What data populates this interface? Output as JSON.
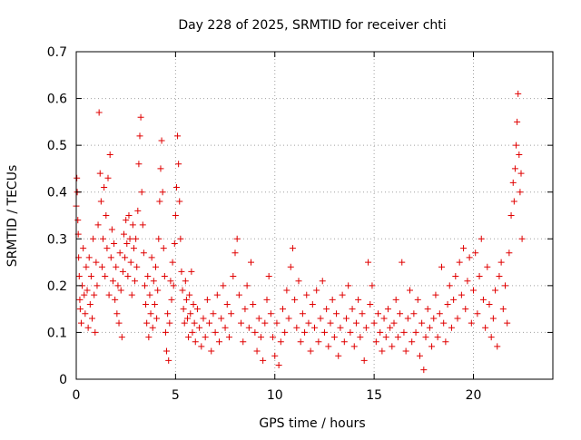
{
  "chart_data": {
    "type": "scatter",
    "title": "Day 228 of 2025, SRMTID for receiver chti",
    "xlabel": "GPS time / hours",
    "ylabel": "SRMTID / TECUs",
    "xlim": [
      0,
      24
    ],
    "ylim": [
      0,
      0.7
    ],
    "xticks": [
      0,
      5,
      10,
      15,
      20
    ],
    "xtick_labels": [
      "0",
      "5",
      "10",
      "15",
      "20"
    ],
    "yticks": [
      0,
      0.1,
      0.2,
      0.3,
      0.4,
      0.5,
      0.6,
      0.7
    ],
    "ytick_labels": [
      "0",
      "0.1",
      "0.2",
      "0.3",
      "0.4",
      "0.5",
      "0.6",
      "0.7"
    ],
    "grid": true,
    "marker": "+",
    "color": "#e00000",
    "series": [
      {
        "name": "SRMTID",
        "points": [
          [
            0.0,
            0.37
          ],
          [
            0.03,
            0.43
          ],
          [
            0.05,
            0.4
          ],
          [
            0.08,
            0.34
          ],
          [
            0.1,
            0.31
          ],
          [
            0.12,
            0.26
          ],
          [
            0.15,
            0.22
          ],
          [
            0.18,
            0.17
          ],
          [
            0.2,
            0.15
          ],
          [
            0.25,
            0.12
          ],
          [
            0.3,
            0.2
          ],
          [
            0.35,
            0.28
          ],
          [
            0.4,
            0.18
          ],
          [
            0.45,
            0.14
          ],
          [
            0.5,
            0.24
          ],
          [
            0.55,
            0.19
          ],
          [
            0.6,
            0.11
          ],
          [
            0.65,
            0.26
          ],
          [
            0.7,
            0.16
          ],
          [
            0.75,
            0.22
          ],
          [
            0.8,
            0.13
          ],
          [
            0.85,
            0.3
          ],
          [
            0.9,
            0.18
          ],
          [
            0.95,
            0.1
          ],
          [
            1.0,
            0.25
          ],
          [
            1.05,
            0.2
          ],
          [
            1.1,
            0.33
          ],
          [
            1.15,
            0.57
          ],
          [
            1.2,
            0.44
          ],
          [
            1.25,
            0.38
          ],
          [
            1.3,
            0.24
          ],
          [
            1.35,
            0.3
          ],
          [
            1.4,
            0.41
          ],
          [
            1.45,
            0.22
          ],
          [
            1.5,
            0.35
          ],
          [
            1.55,
            0.28
          ],
          [
            1.6,
            0.43
          ],
          [
            1.65,
            0.18
          ],
          [
            1.7,
            0.48
          ],
          [
            1.75,
            0.26
          ],
          [
            1.8,
            0.32
          ],
          [
            1.85,
            0.21
          ],
          [
            1.9,
            0.29
          ],
          [
            1.95,
            0.17
          ],
          [
            2.0,
            0.24
          ],
          [
            2.05,
            0.14
          ],
          [
            2.1,
            0.2
          ],
          [
            2.15,
            0.12
          ],
          [
            2.2,
            0.27
          ],
          [
            2.25,
            0.19
          ],
          [
            2.3,
            0.09
          ],
          [
            2.35,
            0.23
          ],
          [
            2.4,
            0.31
          ],
          [
            2.45,
            0.26
          ],
          [
            2.5,
            0.34
          ],
          [
            2.55,
            0.29
          ],
          [
            2.6,
            0.22
          ],
          [
            2.65,
            0.35
          ],
          [
            2.7,
            0.3
          ],
          [
            2.75,
            0.25
          ],
          [
            2.8,
            0.18
          ],
          [
            2.85,
            0.33
          ],
          [
            2.9,
            0.28
          ],
          [
            2.95,
            0.21
          ],
          [
            3.0,
            0.3
          ],
          [
            3.05,
            0.24
          ],
          [
            3.1,
            0.36
          ],
          [
            3.15,
            0.46
          ],
          [
            3.2,
            0.52
          ],
          [
            3.25,
            0.56
          ],
          [
            3.3,
            0.4
          ],
          [
            3.35,
            0.33
          ],
          [
            3.4,
            0.27
          ],
          [
            3.45,
            0.2
          ],
          [
            3.5,
            0.16
          ],
          [
            3.55,
            0.12
          ],
          [
            3.6,
            0.22
          ],
          [
            3.65,
            0.09
          ],
          [
            3.7,
            0.18
          ],
          [
            3.75,
            0.14
          ],
          [
            3.8,
            0.26
          ],
          [
            3.85,
            0.11
          ],
          [
            3.9,
            0.21
          ],
          [
            3.95,
            0.16
          ],
          [
            4.0,
            0.24
          ],
          [
            4.05,
            0.13
          ],
          [
            4.1,
            0.19
          ],
          [
            4.15,
            0.3
          ],
          [
            4.2,
            0.38
          ],
          [
            4.25,
            0.45
          ],
          [
            4.3,
            0.51
          ],
          [
            4.35,
            0.4
          ],
          [
            4.4,
            0.28
          ],
          [
            4.45,
            0.22
          ],
          [
            4.5,
            0.1
          ],
          [
            4.55,
            0.06
          ],
          [
            4.6,
            0.14
          ],
          [
            4.65,
            0.04
          ],
          [
            4.7,
            0.12
          ],
          [
            4.75,
            0.21
          ],
          [
            4.8,
            0.17
          ],
          [
            4.85,
            0.25
          ],
          [
            4.9,
            0.2
          ],
          [
            4.95,
            0.29
          ],
          [
            5.0,
            0.35
          ],
          [
            5.05,
            0.41
          ],
          [
            5.1,
            0.52
          ],
          [
            5.15,
            0.46
          ],
          [
            5.2,
            0.38
          ],
          [
            5.25,
            0.3
          ],
          [
            5.3,
            0.23
          ],
          [
            5.35,
            0.19
          ],
          [
            5.4,
            0.15
          ],
          [
            5.45,
            0.12
          ],
          [
            5.5,
            0.21
          ],
          [
            5.55,
            0.17
          ],
          [
            5.6,
            0.13
          ],
          [
            5.65,
            0.09
          ],
          [
            5.7,
            0.18
          ],
          [
            5.75,
            0.14
          ],
          [
            5.8,
            0.23
          ],
          [
            5.85,
            0.1
          ],
          [
            5.9,
            0.16
          ],
          [
            5.95,
            0.12
          ],
          [
            6.0,
            0.08
          ],
          [
            6.1,
            0.15
          ],
          [
            6.2,
            0.11
          ],
          [
            6.3,
            0.07
          ],
          [
            6.4,
            0.13
          ],
          [
            6.5,
            0.09
          ],
          [
            6.6,
            0.17
          ],
          [
            6.7,
            0.12
          ],
          [
            6.8,
            0.06
          ],
          [
            6.9,
            0.14
          ],
          [
            7.0,
            0.1
          ],
          [
            7.1,
            0.18
          ],
          [
            7.2,
            0.08
          ],
          [
            7.3,
            0.13
          ],
          [
            7.4,
            0.2
          ],
          [
            7.5,
            0.11
          ],
          [
            7.6,
            0.16
          ],
          [
            7.7,
            0.09
          ],
          [
            7.8,
            0.14
          ],
          [
            7.9,
            0.22
          ],
          [
            8.0,
            0.27
          ],
          [
            8.1,
            0.3
          ],
          [
            8.2,
            0.18
          ],
          [
            8.3,
            0.12
          ],
          [
            8.4,
            0.08
          ],
          [
            8.5,
            0.15
          ],
          [
            8.6,
            0.2
          ],
          [
            8.7,
            0.11
          ],
          [
            8.8,
            0.25
          ],
          [
            8.9,
            0.16
          ],
          [
            9.0,
            0.1
          ],
          [
            9.1,
            0.06
          ],
          [
            9.2,
            0.13
          ],
          [
            9.3,
            0.09
          ],
          [
            9.4,
            0.04
          ],
          [
            9.5,
            0.12
          ],
          [
            9.6,
            0.17
          ],
          [
            9.7,
            0.22
          ],
          [
            9.8,
            0.14
          ],
          [
            9.9,
            0.09
          ],
          [
            10.0,
            0.05
          ],
          [
            10.1,
            0.12
          ],
          [
            10.2,
            0.03
          ],
          [
            10.3,
            0.08
          ],
          [
            10.4,
            0.15
          ],
          [
            10.5,
            0.1
          ],
          [
            10.6,
            0.19
          ],
          [
            10.7,
            0.13
          ],
          [
            10.8,
            0.24
          ],
          [
            10.9,
            0.28
          ],
          [
            11.0,
            0.17
          ],
          [
            11.1,
            0.11
          ],
          [
            11.2,
            0.21
          ],
          [
            11.3,
            0.08
          ],
          [
            11.4,
            0.14
          ],
          [
            11.5,
            0.1
          ],
          [
            11.6,
            0.18
          ],
          [
            11.7,
            0.12
          ],
          [
            11.8,
            0.06
          ],
          [
            11.9,
            0.16
          ],
          [
            12.0,
            0.11
          ],
          [
            12.1,
            0.19
          ],
          [
            12.2,
            0.08
          ],
          [
            12.3,
            0.13
          ],
          [
            12.4,
            0.21
          ],
          [
            12.5,
            0.1
          ],
          [
            12.6,
            0.15
          ],
          [
            12.7,
            0.07
          ],
          [
            12.8,
            0.12
          ],
          [
            12.9,
            0.17
          ],
          [
            13.0,
            0.09
          ],
          [
            13.1,
            0.14
          ],
          [
            13.2,
            0.05
          ],
          [
            13.3,
            0.11
          ],
          [
            13.4,
            0.18
          ],
          [
            13.5,
            0.08
          ],
          [
            13.6,
            0.13
          ],
          [
            13.7,
            0.2
          ],
          [
            13.8,
            0.1
          ],
          [
            13.9,
            0.15
          ],
          [
            14.0,
            0.07
          ],
          [
            14.1,
            0.12
          ],
          [
            14.2,
            0.17
          ],
          [
            14.3,
            0.09
          ],
          [
            14.4,
            0.14
          ],
          [
            14.5,
            0.04
          ],
          [
            14.6,
            0.11
          ],
          [
            14.7,
            0.25
          ],
          [
            14.8,
            0.16
          ],
          [
            14.9,
            0.2
          ],
          [
            15.0,
            0.12
          ],
          [
            15.1,
            0.08
          ],
          [
            15.2,
            0.14
          ],
          [
            15.3,
            0.1
          ],
          [
            15.4,
            0.06
          ],
          [
            15.5,
            0.13
          ],
          [
            15.6,
            0.09
          ],
          [
            15.7,
            0.15
          ],
          [
            15.8,
            0.11
          ],
          [
            15.9,
            0.07
          ],
          [
            16.0,
            0.12
          ],
          [
            16.1,
            0.17
          ],
          [
            16.2,
            0.09
          ],
          [
            16.3,
            0.14
          ],
          [
            16.4,
            0.25
          ],
          [
            16.5,
            0.1
          ],
          [
            16.6,
            0.06
          ],
          [
            16.7,
            0.13
          ],
          [
            16.8,
            0.19
          ],
          [
            16.9,
            0.08
          ],
          [
            17.0,
            0.14
          ],
          [
            17.1,
            0.1
          ],
          [
            17.2,
            0.17
          ],
          [
            17.3,
            0.05
          ],
          [
            17.4,
            0.12
          ],
          [
            17.5,
            0.02
          ],
          [
            17.6,
            0.09
          ],
          [
            17.7,
            0.15
          ],
          [
            17.8,
            0.11
          ],
          [
            17.9,
            0.07
          ],
          [
            18.0,
            0.13
          ],
          [
            18.1,
            0.18
          ],
          [
            18.2,
            0.09
          ],
          [
            18.3,
            0.14
          ],
          [
            18.4,
            0.24
          ],
          [
            18.5,
            0.12
          ],
          [
            18.6,
            0.08
          ],
          [
            18.7,
            0.16
          ],
          [
            18.8,
            0.2
          ],
          [
            18.9,
            0.11
          ],
          [
            19.0,
            0.17
          ],
          [
            19.1,
            0.22
          ],
          [
            19.2,
            0.13
          ],
          [
            19.3,
            0.25
          ],
          [
            19.4,
            0.18
          ],
          [
            19.5,
            0.28
          ],
          [
            19.6,
            0.15
          ],
          [
            19.7,
            0.21
          ],
          [
            19.8,
            0.26
          ],
          [
            19.9,
            0.12
          ],
          [
            20.0,
            0.19
          ],
          [
            20.1,
            0.27
          ],
          [
            20.2,
            0.14
          ],
          [
            20.3,
            0.22
          ],
          [
            20.4,
            0.3
          ],
          [
            20.5,
            0.17
          ],
          [
            20.6,
            0.11
          ],
          [
            20.7,
            0.24
          ],
          [
            20.8,
            0.16
          ],
          [
            20.9,
            0.09
          ],
          [
            21.0,
            0.13
          ],
          [
            21.1,
            0.19
          ],
          [
            21.2,
            0.07
          ],
          [
            21.3,
            0.22
          ],
          [
            21.4,
            0.25
          ],
          [
            21.5,
            0.15
          ],
          [
            21.6,
            0.2
          ],
          [
            21.7,
            0.12
          ],
          [
            21.8,
            0.27
          ],
          [
            21.9,
            0.35
          ],
          [
            22.0,
            0.42
          ],
          [
            22.05,
            0.38
          ],
          [
            22.1,
            0.45
          ],
          [
            22.15,
            0.5
          ],
          [
            22.2,
            0.55
          ],
          [
            22.25,
            0.61
          ],
          [
            22.3,
            0.48
          ],
          [
            22.35,
            0.4
          ],
          [
            22.4,
            0.44
          ],
          [
            22.45,
            0.3
          ]
        ]
      }
    ]
  }
}
